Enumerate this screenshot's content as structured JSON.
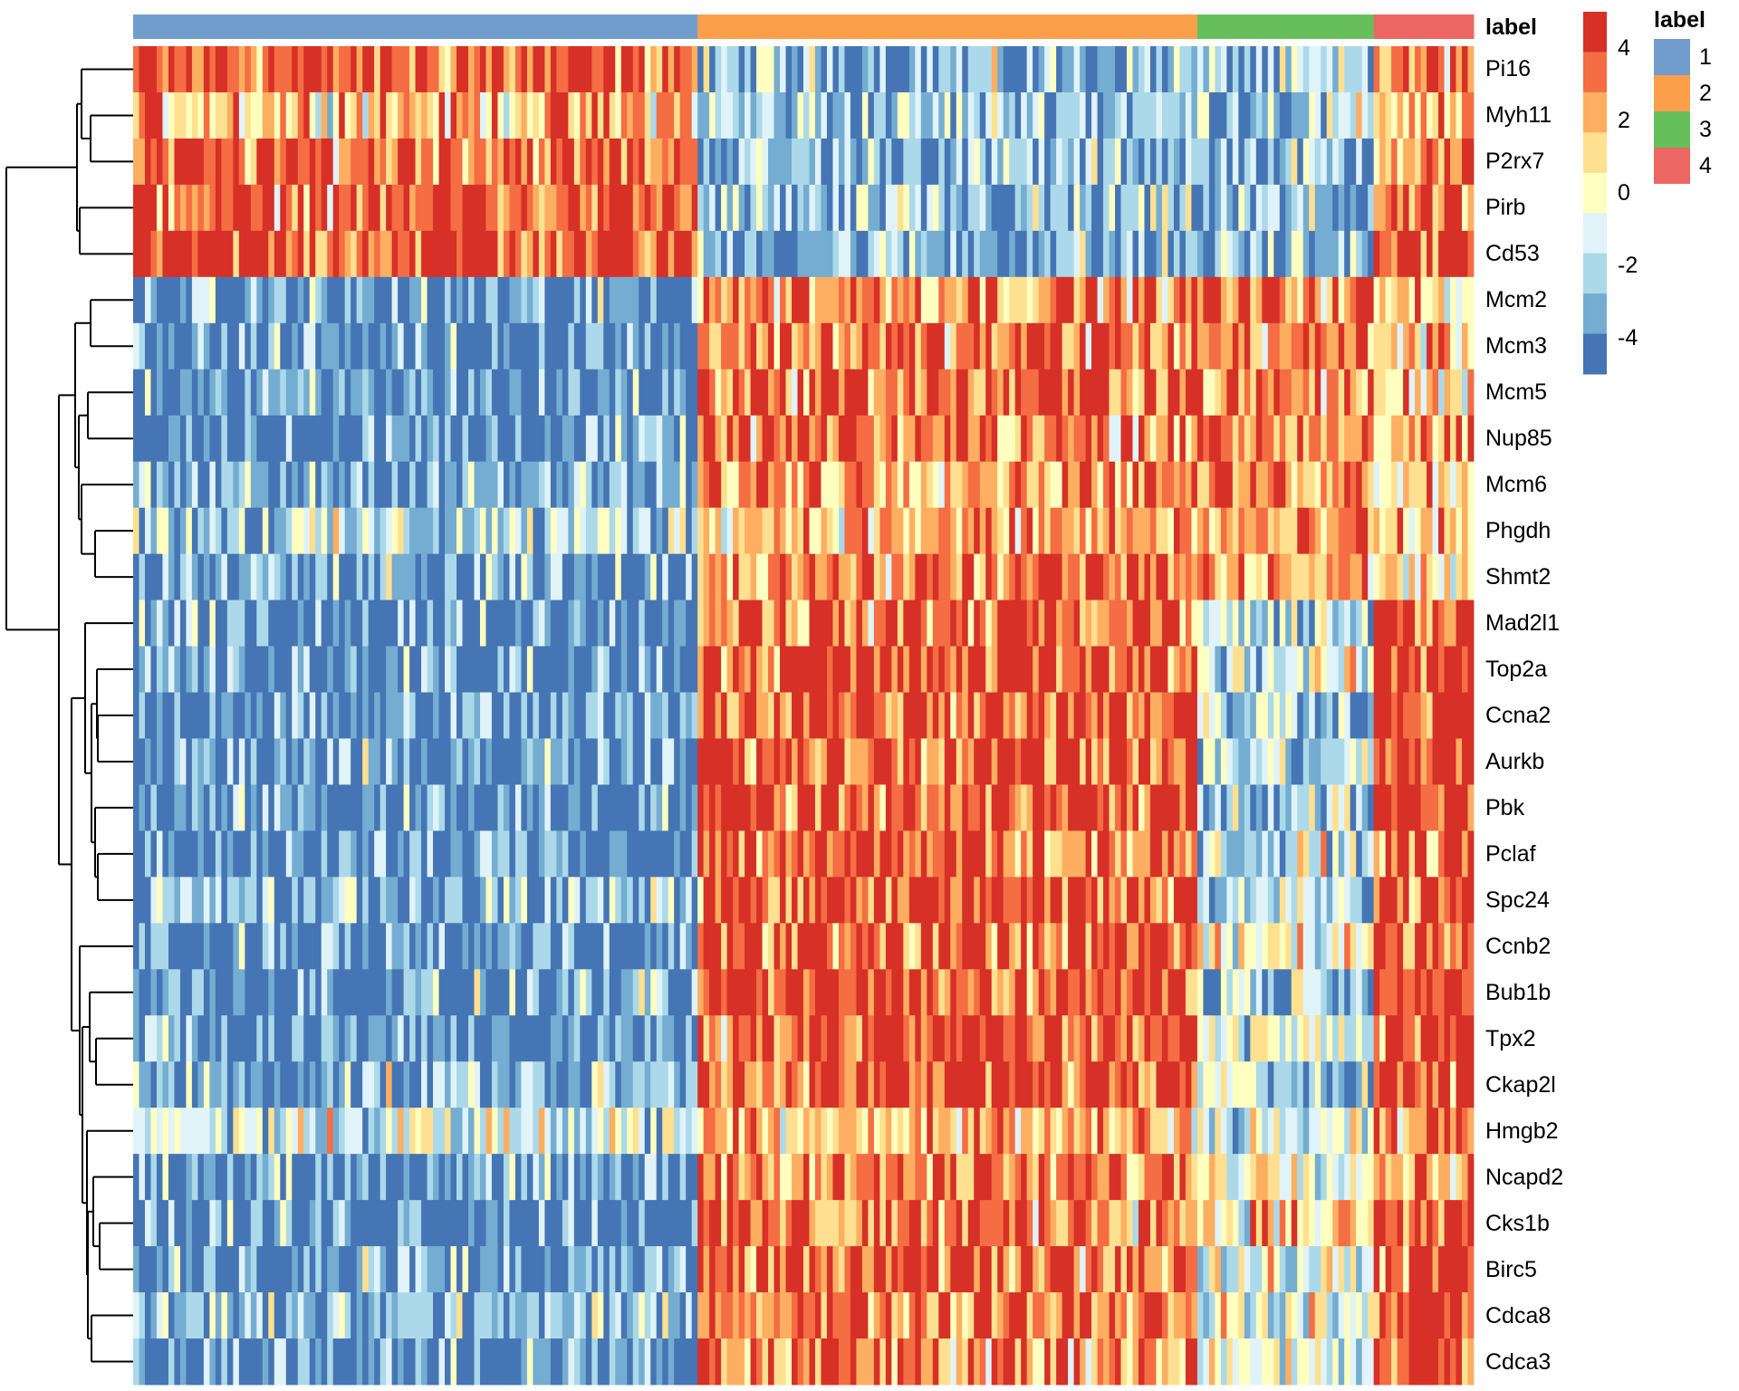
{
  "chart_data": {
    "type": "heatmap",
    "title": "",
    "annotation_title": "label",
    "legend_title": "label",
    "rows": [
      "Pi16",
      "Myh11",
      "P2rx7",
      "Pirb",
      "Cd53",
      "Mcm2",
      "Mcm3",
      "Mcm5",
      "Nup85",
      "Mcm6",
      "Phgdh",
      "Shmt2",
      "Mad2l1",
      "Top2a",
      "Ccna2",
      "Aurkb",
      "Pbk",
      "Pclaf",
      "Spc24",
      "Ccnb2",
      "Bub1b",
      "Tpx2",
      "Ckap2l",
      "Hmgb2",
      "Ncapd2",
      "Cks1b",
      "Birc5",
      "Cdca8",
      "Cdca3"
    ],
    "column_groups": [
      {
        "label": "1",
        "n_columns": 96,
        "color": "#719DCD"
      },
      {
        "label": "2",
        "n_columns": 85,
        "color": "#FC9F4B"
      },
      {
        "label": "3",
        "n_columns": 30,
        "color": "#67BF5C"
      },
      {
        "label": "4",
        "n_columns": 17,
        "color": "#EC6762"
      }
    ],
    "row_group_means": [
      [
        3.5,
        -3,
        -3,
        3
      ],
      [
        2,
        -2.4,
        -2.2,
        2
      ],
      [
        3.5,
        -3,
        -3,
        3
      ],
      [
        3.5,
        -3,
        -3,
        3
      ],
      [
        4,
        -3,
        -3,
        4
      ],
      [
        -4,
        3,
        3,
        1
      ],
      [
        -4,
        3,
        3,
        1.5
      ],
      [
        -4,
        3.5,
        2.5,
        1
      ],
      [
        -4,
        3,
        3,
        2
      ],
      [
        -3.5,
        3,
        3,
        2
      ],
      [
        -2,
        2,
        2,
        1
      ],
      [
        -4,
        3,
        2,
        1
      ],
      [
        -4,
        3.5,
        -2,
        4
      ],
      [
        -4,
        4,
        -1,
        4.5
      ],
      [
        -4,
        4,
        -2,
        4.5
      ],
      [
        -4,
        4,
        -2,
        4
      ],
      [
        -4,
        4,
        -2,
        4
      ],
      [
        -4,
        3.5,
        -2,
        3.5
      ],
      [
        -3,
        4,
        -2,
        4
      ],
      [
        -4,
        3.5,
        0,
        4
      ],
      [
        -4,
        4,
        -2,
        5
      ],
      [
        -4,
        4,
        -1,
        4.5
      ],
      [
        -3,
        4,
        -2,
        4.5
      ],
      [
        -1,
        2,
        -1,
        3
      ],
      [
        -4,
        3,
        1,
        3
      ],
      [
        -4,
        3,
        1,
        3.5
      ],
      [
        -4,
        3.5,
        -1,
        4
      ],
      [
        -3,
        3.5,
        -1,
        4.5
      ],
      [
        -4,
        3,
        -1,
        3.5
      ]
    ],
    "noise_spread": 4.5,
    "value_range": [
      -5,
      5
    ],
    "colorbar_ticks": [
      "4",
      "2",
      "0",
      "-2",
      "-4"
    ],
    "colorbar_tick_values": [
      4,
      2,
      0,
      -2,
      -4
    ],
    "palette": [
      "#D73027",
      "#F46D43",
      "#FDAE61",
      "#FEE090",
      "#FFFFBF",
      "#E0F3F8",
      "#ABD9E9",
      "#74ADD1",
      "#4575B4"
    ],
    "row_dendrogram": [
      140,
      [
        62,
        [
          57,
          0,
          [
            47,
            1,
            2
          ]
        ],
        [
          59,
          3,
          4
        ]
      ],
      [
        82,
        [
          64,
          [
            47,
            5,
            6
          ],
          [
            60,
            [
              50,
              7,
              8
            ],
            [
              57,
              9,
              [
                42,
                10,
                11
              ]
            ]
          ]
        ],
        [
          68,
          [
            53,
            12,
            [
              46,
              [
                40,
                13,
                [
                  39,
                  14,
                  15
                ]
              ],
              [
                42,
                16,
                [
                  39,
                  17,
                  18
                ]
              ]
            ]
          ],
          [
            59,
            19,
            [
              56,
              [
                48,
                20,
                [
                  41,
                  21,
                  22
                ]
              ],
              [
                51,
                23,
                [
                  50,
                  [
                    44,
                    24,
                    [
                      37,
                      25,
                      26
                    ]
                  ],
                  [
                    46,
                    27,
                    28
                  ]
                ]
              ]
            ]
          ]
        ]
      ]
    ]
  }
}
